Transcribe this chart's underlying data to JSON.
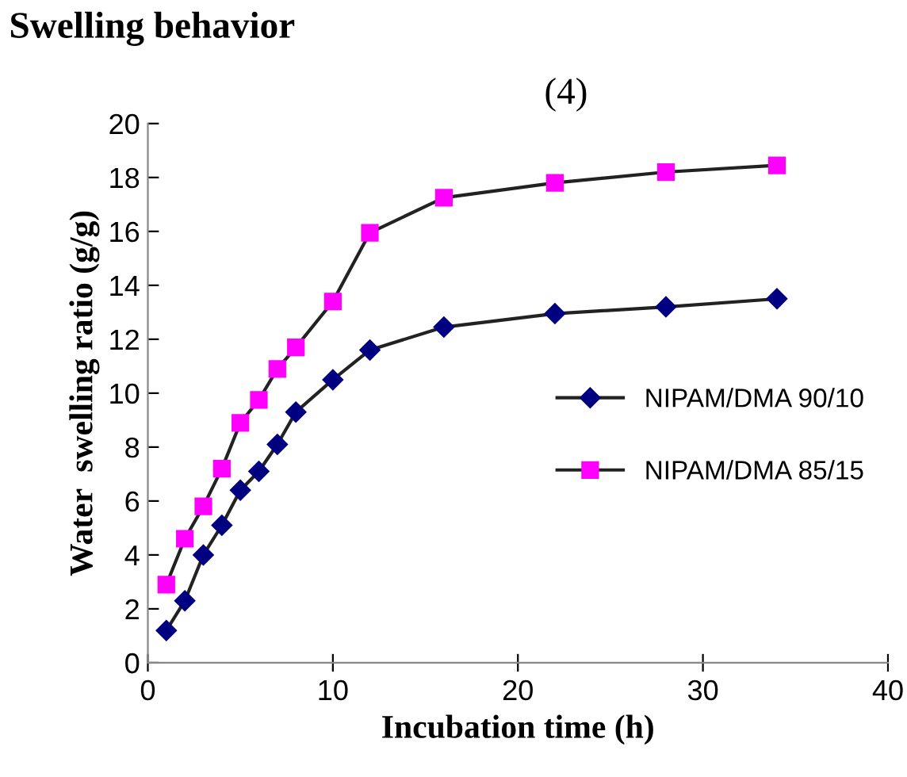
{
  "chart_data": {
    "type": "line",
    "xlabel": "Incubation time (h)",
    "ylabel": "Water  swelling ratio (g/g)",
    "annotations": [
      "Swelling behavior",
      "(4)"
    ],
    "x": [
      1,
      2,
      3,
      4,
      5,
      6,
      7,
      8,
      10,
      12,
      16,
      22,
      28,
      34
    ],
    "series": [
      {
        "name": "NIPAM/DMA 90/10",
        "color": "#000080",
        "marker": "diamond",
        "values": [
          1.2,
          2.3,
          4.0,
          5.1,
          6.4,
          7.1,
          8.1,
          9.3,
          10.5,
          11.6,
          12.45,
          12.95,
          13.2,
          13.5
        ]
      },
      {
        "name": "NIPAM/DMA 85/15",
        "color": "#ff00ff",
        "marker": "square",
        "values": [
          2.9,
          4.6,
          5.8,
          7.2,
          8.9,
          9.75,
          10.9,
          11.7,
          13.4,
          15.95,
          17.25,
          17.8,
          18.2,
          18.45
        ]
      }
    ],
    "xlim": [
      0,
      40
    ],
    "xticks": [
      0,
      10,
      20,
      30,
      40
    ],
    "ylim": [
      0,
      20
    ],
    "yticks": [
      0,
      2,
      4,
      6,
      8,
      10,
      12,
      14,
      16,
      18,
      20
    ],
    "grid": false,
    "legend": "right",
    "line_style": "solid"
  }
}
